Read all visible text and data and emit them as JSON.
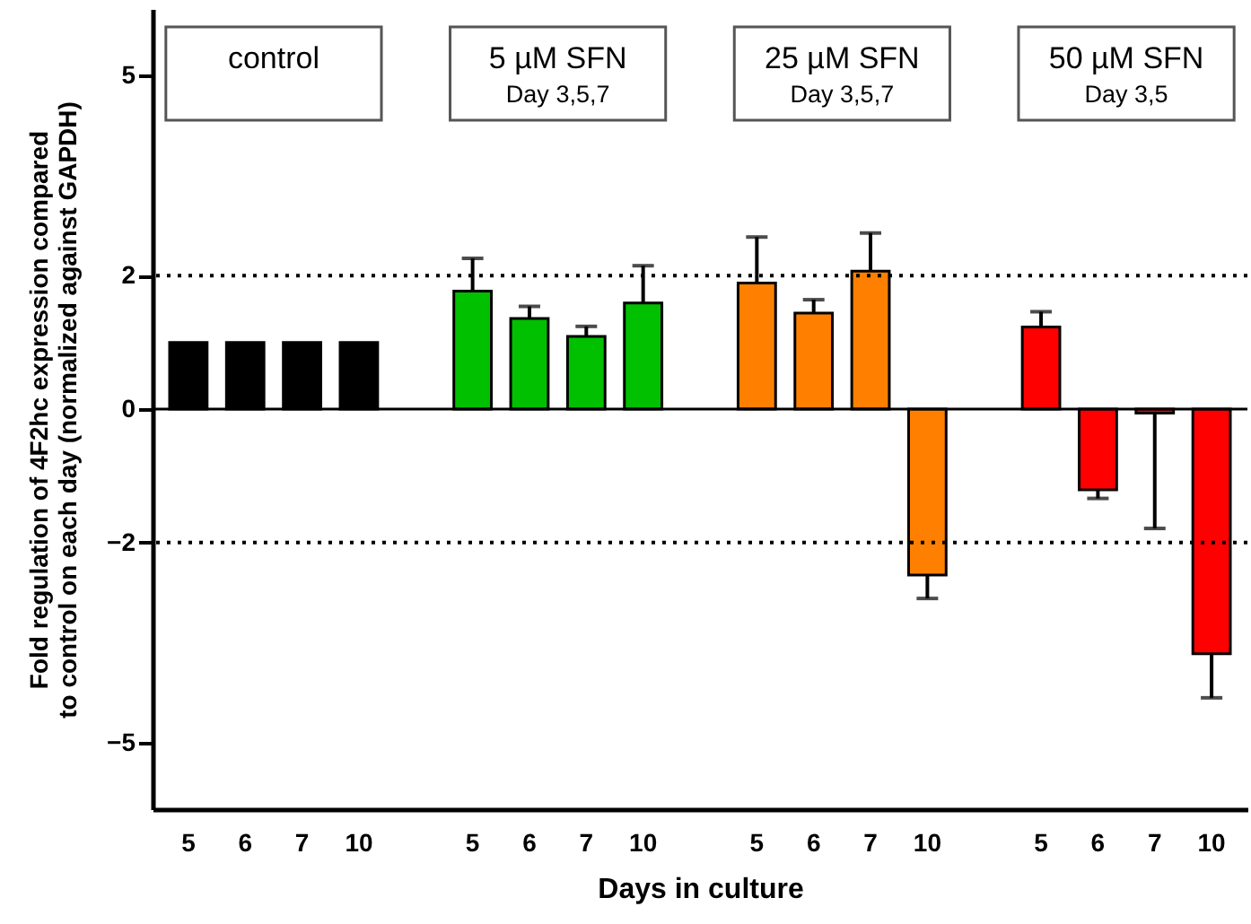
{
  "chart_data": {
    "type": "bar",
    "ylabel": "Fold regulation of 4F2hc expression compared\nto control on each day (normalized against GAPDH)",
    "xlabel": "Days in culture",
    "categories": [
      "5",
      "6",
      "7",
      "10",
      null,
      "5",
      "6",
      "7",
      "10",
      null,
      "5",
      "6",
      "7",
      "10",
      null,
      "5",
      "6",
      "7",
      "10"
    ],
    "values": [
      1.0,
      1.0,
      1.0,
      1.0,
      null,
      1.77,
      1.36,
      1.09,
      1.59,
      null,
      1.89,
      1.44,
      2.07,
      -2.49,
      null,
      1.23,
      -1.21,
      -0.06,
      -3.67
    ],
    "colors": [
      "#000000",
      "#000000",
      "#000000",
      "#000000",
      null,
      "#00c000",
      "#00c000",
      "#00c000",
      "#00c000",
      null,
      "#ff8000",
      "#ff8000",
      "#ff8000",
      "#ff8000",
      null,
      "#ff0000",
      "#ff0000",
      "#ff0000",
      "#ff0000"
    ],
    "errors": [
      null,
      null,
      null,
      null,
      null,
      [
        1.77,
        2.26
      ],
      [
        1.36,
        1.54
      ],
      [
        1.09,
        1.24
      ],
      [
        1.59,
        2.15
      ],
      null,
      [
        1.89,
        2.58
      ],
      [
        1.44,
        1.64
      ],
      [
        2.07,
        2.64
      ],
      [
        -2.84,
        -2.49
      ],
      null,
      [
        1.23,
        1.46
      ],
      [
        -1.34,
        -1.21
      ],
      [
        -1.79,
        -0.06
      ],
      [
        -4.33,
        -3.67
      ]
    ],
    "ylim": [
      -6,
      6
    ],
    "yticks": [
      -5,
      -2,
      0,
      2,
      5
    ],
    "ref_lines": [
      {
        "axis": "y",
        "value": 2,
        "line_style": "dotted"
      },
      {
        "axis": "y",
        "value": -2,
        "line_style": "dotted"
      },
      {
        "axis": "y",
        "value": 0,
        "line_style": "solid"
      }
    ],
    "annotations": [
      "control",
      "5 µM SFN\nDay 3,5,7",
      "25 µM SFN\nDay 3,5,7",
      "50 µM SFN\nDay 3,5"
    ]
  }
}
